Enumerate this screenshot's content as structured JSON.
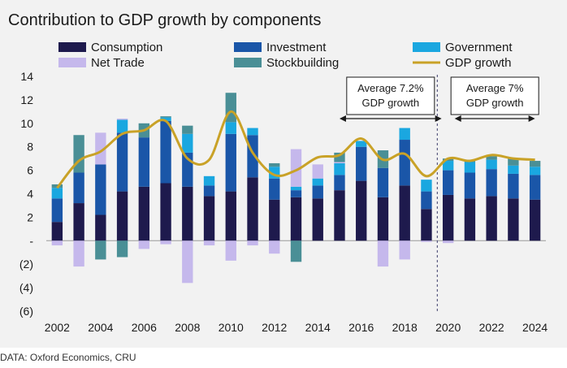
{
  "header": {
    "title": "Contribution to GDP growth by components"
  },
  "footer": {
    "source": "DATA: Oxford Economics, CRU"
  },
  "colors": {
    "Consumption": "#1e1a4d",
    "Investment": "#1a56a8",
    "Government": "#1aa7e0",
    "Net Trade": "#c5b8ec",
    "Stockbuilding": "#4a8f96",
    "GDP growth": "#c9a227"
  },
  "chart_data": {
    "type": "bar",
    "stacked": true,
    "title": "Contribution to GDP growth by components",
    "xlabel": "",
    "ylabel": "",
    "ylim": [
      -6,
      14
    ],
    "yticks": [
      -6,
      -4,
      -2,
      0,
      2,
      4,
      6,
      8,
      10,
      12,
      14
    ],
    "ytick_labels": [
      "(6)",
      "(4)",
      "(2)",
      "-",
      "2",
      "4",
      "6",
      "8",
      "10",
      "12",
      "14"
    ],
    "x_tick_labels": [
      "2002",
      "2004",
      "2006",
      "2008",
      "2010",
      "2012",
      "2014",
      "2016",
      "2018",
      "2020",
      "2022",
      "2024"
    ],
    "categories": [
      2002,
      2003,
      2004,
      2005,
      2006,
      2007,
      2008,
      2009,
      2010,
      2011,
      2012,
      2013,
      2014,
      2015,
      2016,
      2017,
      2018,
      2019,
      2020,
      2021,
      2022,
      2023,
      2024
    ],
    "legend": [
      "Consumption",
      "Investment",
      "Government",
      "Net Trade",
      "Stockbuilding",
      "GDP growth"
    ],
    "legend_placement": "top",
    "series": [
      {
        "name": "Consumption",
        "values": [
          1.6,
          3.2,
          2.2,
          4.2,
          4.6,
          4.9,
          4.6,
          3.8,
          4.2,
          5.4,
          3.5,
          3.7,
          3.6,
          4.3,
          5.1,
          3.7,
          4.7,
          2.7,
          3.9,
          3.6,
          3.8,
          3.6,
          3.5
        ]
      },
      {
        "name": "Investment",
        "values": [
          2.0,
          2.6,
          4.3,
          5.0,
          4.2,
          5.3,
          2.9,
          0.9,
          4.9,
          3.6,
          1.8,
          0.6,
          1.1,
          1.3,
          2.9,
          2.5,
          3.9,
          1.5,
          2.1,
          2.2,
          2.3,
          2.1,
          2.1
        ]
      },
      {
        "name": "Government",
        "values": [
          0.9,
          0.0,
          0.0,
          1.1,
          0.0,
          0.3,
          1.6,
          0.8,
          1.0,
          0.6,
          1.0,
          0.3,
          0.6,
          1.0,
          0.5,
          0.0,
          1.0,
          1.0,
          0.8,
          0.9,
          0.8,
          0.7,
          0.7
        ]
      },
      {
        "name": "Net Trade",
        "values": [
          -0.4,
          -2.2,
          2.7,
          0.1,
          -0.7,
          -0.3,
          -3.6,
          -0.4,
          -1.7,
          -0.4,
          -1.1,
          3.2,
          1.2,
          0.1,
          0.0,
          -2.2,
          -1.6,
          -0.1,
          -0.2,
          0.0,
          0.0,
          0.0,
          0.0
        ]
      },
      {
        "name": "Stockbuilding",
        "values": [
          0.3,
          3.2,
          -1.6,
          -1.4,
          1.2,
          0.1,
          0.7,
          0.0,
          2.5,
          0.0,
          0.3,
          -1.8,
          0.0,
          0.8,
          0.0,
          1.5,
          0.0,
          0.0,
          0.2,
          0.2,
          0.3,
          0.6,
          0.5
        ]
      }
    ],
    "line_series": {
      "name": "GDP growth",
      "values": [
        4.5,
        6.8,
        7.6,
        9.1,
        9.4,
        10.2,
        7.0,
        6.9,
        11.0,
        7.5,
        5.6,
        6.0,
        7.1,
        7.3,
        8.7,
        6.9,
        7.4,
        5.5,
        7.0,
        6.8,
        7.3,
        7.0,
        6.9
      ]
    },
    "forecast_divider_after": 2019,
    "annotations": [
      {
        "text_lines": [
          "Average 7.2%",
          "GDP growth"
        ],
        "from": 2015,
        "to": 2019.7
      },
      {
        "text_lines": [
          "Average 7%",
          "GDP growth"
        ],
        "from": 2020.3,
        "to": 2024
      }
    ]
  }
}
